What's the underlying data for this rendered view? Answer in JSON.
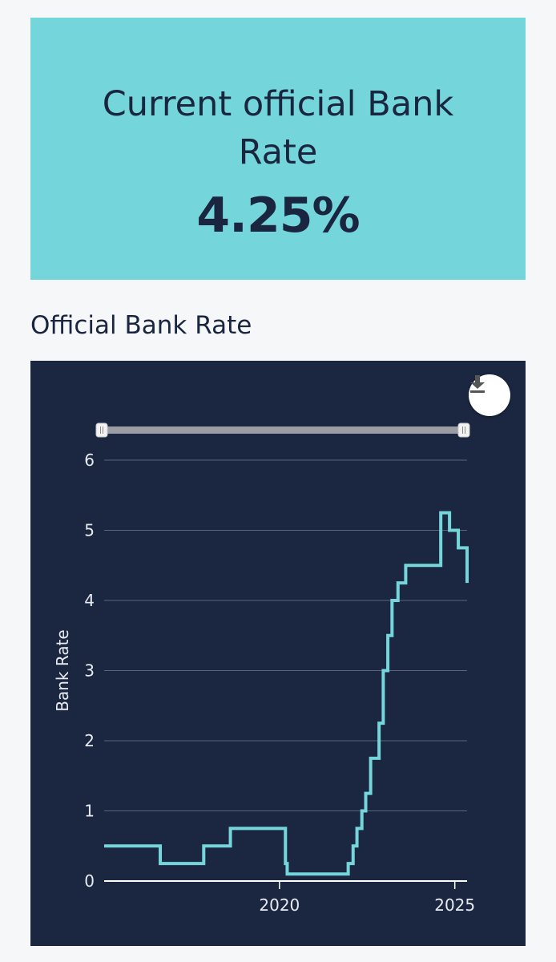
{
  "rate_card": {
    "title": "Current official Bank Rate",
    "value": "4.25%",
    "background": "#74d6da",
    "text_color": "#1a2640"
  },
  "chart_heading": "Official Bank Rate",
  "chart_panel": {
    "background": "#1b2740",
    "line_color": "#74d6da",
    "download_icon": "download-icon"
  },
  "chart_data": {
    "type": "line",
    "title": "",
    "xlabel": "",
    "ylabel": "Bank Rate",
    "ylim": [
      0,
      6
    ],
    "xlim": [
      2015.0,
      2025.35
    ],
    "yticks": [
      "0",
      "1",
      "2",
      "3",
      "4",
      "5",
      "6"
    ],
    "xticks": [
      "2020",
      "2025"
    ],
    "grid": true,
    "series": [
      {
        "step": true,
        "x": [
          2015.0,
          2016.6,
          2017.84,
          2018.6,
          2020.17,
          2020.22,
          2021.96,
          2022.1,
          2022.21,
          2022.35,
          2022.46,
          2022.6,
          2022.84,
          2022.96,
          2023.09,
          2023.21,
          2023.38,
          2023.6,
          2024.6,
          2024.85,
          2025.1,
          2025.35
        ],
        "values": [
          0.5,
          0.25,
          0.5,
          0.75,
          0.25,
          0.1,
          0.25,
          0.5,
          0.75,
          1.0,
          1.25,
          1.75,
          2.25,
          3.0,
          3.5,
          4.0,
          4.25,
          4.5,
          5.25,
          5.0,
          4.75,
          4.5
        ],
        "end": [
          2025.35,
          4.25
        ]
      }
    ]
  }
}
